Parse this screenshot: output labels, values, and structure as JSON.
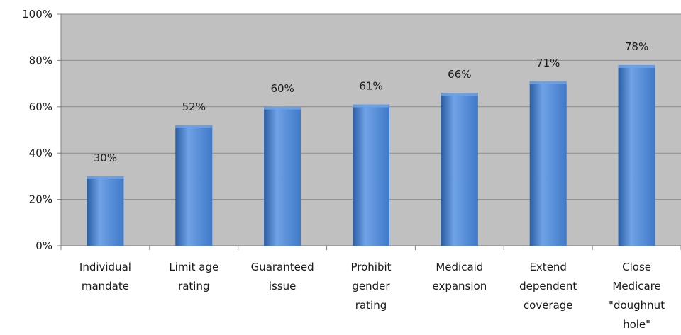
{
  "chart_data": {
    "type": "bar",
    "categories": [
      [
        "Individual",
        "mandate"
      ],
      [
        "Limit age",
        "rating"
      ],
      [
        "Guaranteed",
        "issue"
      ],
      [
        "Prohibit",
        "gender",
        "rating"
      ],
      [
        "Medicaid",
        "expansion"
      ],
      [
        "Extend",
        "dependent",
        "coverage"
      ],
      [
        "Close",
        "Medicare",
        "\"doughnut",
        "hole\""
      ]
    ],
    "values": [
      30,
      52,
      60,
      61,
      66,
      71,
      78
    ],
    "data_labels": [
      "30%",
      "52%",
      "60%",
      "61%",
      "66%",
      "71%",
      "78%"
    ],
    "yticks": [
      "0%",
      "20%",
      "40%",
      "60%",
      "80%",
      "100%"
    ],
    "ylim": [
      0,
      100
    ],
    "grid": true,
    "legend": "none",
    "colors": {
      "plot_background": "#c0c0c0",
      "bar": "#3f79c8",
      "bar_light": "#6fa2e6",
      "bar_dark": "#2a5da3",
      "gridline": "#8c8c8c",
      "axis": "#808080"
    }
  }
}
